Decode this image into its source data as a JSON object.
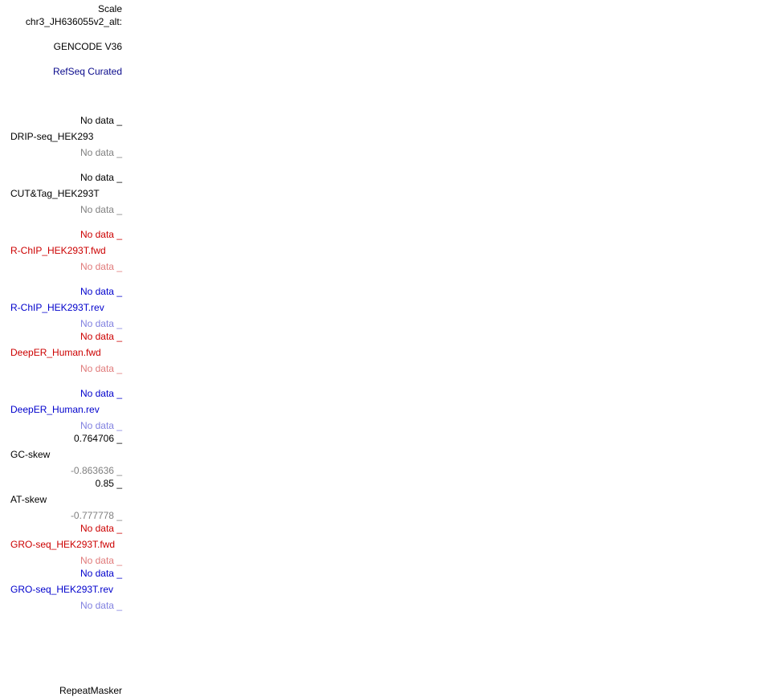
{
  "header": {
    "scale": "Scale",
    "chrom": "chr3_JH636055v2_alt:"
  },
  "tracks": {
    "gencode": "GENCODE V36",
    "refseq": "RefSeq Curated",
    "drip": {
      "name": "DRIP-seq_HEK293",
      "max": "No data _",
      "min": "No data _"
    },
    "cuttag": {
      "name": "CUT&Tag_HEK293T",
      "max": "No data _",
      "min": "No data _"
    },
    "rchip_fwd": {
      "name": "R-ChIP_HEK293T.fwd",
      "max": "No data _",
      "min": "No data _"
    },
    "rchip_rev": {
      "name": "R-ChIP_HEK293T.rev",
      "max": "No data _",
      "min": "No data _"
    },
    "deeper_fwd": {
      "name": "DeepER_Human.fwd",
      "max": "No data _",
      "min": "No data _"
    },
    "deeper_rev": {
      "name": "DeepER_Human.rev",
      "max": "No data _",
      "min": "No data _"
    },
    "gcskew": {
      "name": "GC-skew",
      "max": "0.764706 _",
      "min": "-0.863636 _"
    },
    "atskew": {
      "name": "AT-skew",
      "max": "0.85 _",
      "min": "-0.777778 _"
    },
    "gro_fwd": {
      "name": "GRO-seq_HEK293T.fwd",
      "max": "No data _",
      "min": "No data _"
    },
    "gro_rev": {
      "name": "GRO-seq_HEK293T.rev",
      "max": "No data _",
      "min": "No data _"
    },
    "repeatmasker": "RepeatMasker"
  },
  "colors": {
    "black": "#000000",
    "gray": "#808080",
    "navy": "#0a0a8c",
    "red": "#cc0000",
    "pink": "#e07a7a",
    "blue": "#0000cc",
    "lavender": "#8080e0"
  }
}
